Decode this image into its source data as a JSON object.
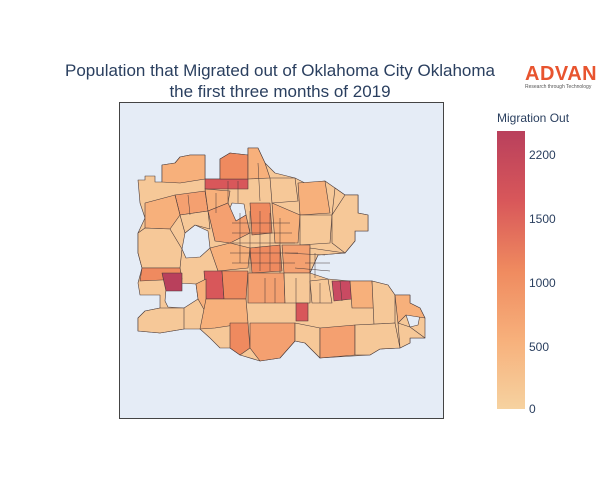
{
  "title_line1": "Population that Migrated out of Oklahoma City Oklahoma",
  "title_line2": "the first three months of 2019",
  "logo": {
    "word": "ADVAN",
    "tagline": "Research through Technology"
  },
  "colorbar": {
    "title": "Migration Out",
    "ticks": [
      "2200",
      "1500",
      "1000",
      "500",
      "0"
    ],
    "colors": [
      "#b9405c",
      "#d8575a",
      "#ef8a5f",
      "#f7b07b",
      "#f6d2a0"
    ]
  },
  "map": {
    "background": "#e5ecf6",
    "border_color": "#444444",
    "region_outline_color": "#4a3b3b",
    "choropleth_values": [
      120,
      340,
      2200,
      800,
      450,
      1600,
      60,
      900,
      300,
      1300,
      700,
      250
    ]
  }
}
